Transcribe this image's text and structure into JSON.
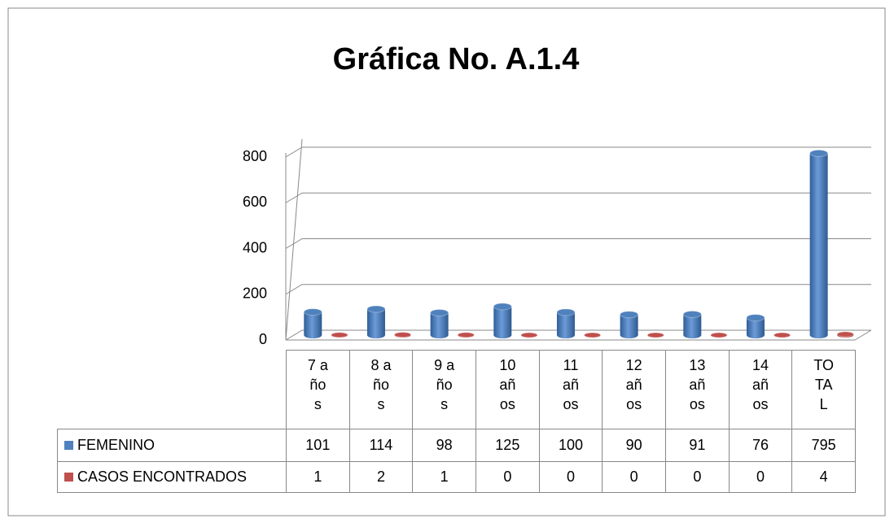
{
  "chart_data": {
    "type": "bar3d",
    "title": "Gráfica No. A.1.4",
    "categories": [
      "7 años",
      "8 años",
      "9 años",
      "10 años",
      "11 años",
      "12 años",
      "13 años",
      "14 años",
      "TOTAL"
    ],
    "series": [
      {
        "name": "FEMENINO",
        "color": "#4f81bd",
        "values": [
          101,
          114,
          98,
          125,
          100,
          90,
          91,
          76,
          795
        ]
      },
      {
        "name": "CASOS ENCONTRADOS",
        "color": "#c0504d",
        "values": [
          1,
          2,
          1,
          0,
          0,
          0,
          0,
          0,
          4
        ]
      }
    ],
    "ylim": [
      0,
      800
    ],
    "yticks": [
      0,
      200,
      400,
      600,
      800
    ],
    "grid": true,
    "legend": "table"
  }
}
